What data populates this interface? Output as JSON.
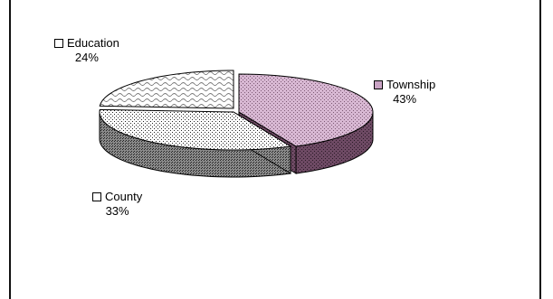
{
  "chart_data": {
    "type": "pie",
    "title": "",
    "style": "3d-exploded",
    "slices": [
      {
        "label": "Township",
        "value": 43,
        "percent_label": "43%",
        "color": "#c9a3c4",
        "pattern": "dots-dense",
        "side_color": "#6e4a64"
      },
      {
        "label": "County",
        "value": 33,
        "percent_label": "33%",
        "color": "#9a9a9a",
        "pattern": "dots-checker",
        "side_color": "#5a5a5a"
      },
      {
        "label": "Education",
        "value": 24,
        "percent_label": "24%",
        "color": "#ffffff",
        "pattern": "wave",
        "side_color": "#d0d0d0"
      }
    ],
    "legend": "labels-beside-slices"
  }
}
